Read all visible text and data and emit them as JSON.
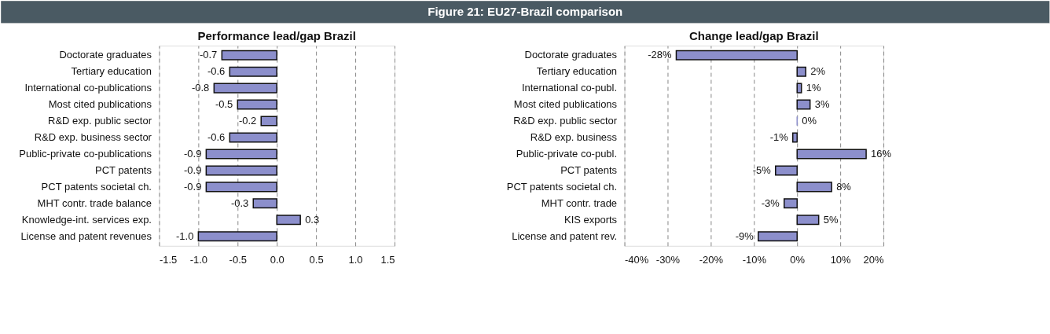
{
  "chart_data": [
    {
      "type": "bar",
      "orientation": "horizontal",
      "title": "Performance lead/gap Brazil",
      "annotations": [
        "Figure 21: EU27-Brazil comparison"
      ],
      "categories": [
        "Doctorate graduates",
        "Tertiary education",
        "International co-publications",
        "Most cited publications",
        "R&D exp. public sector",
        "R&D exp. business sector",
        "Public-private co-publications",
        "PCT patents",
        "PCT patents societal ch.",
        "MHT contr. trade balance",
        "Knowledge-int. services exp.",
        "License and patent revenues"
      ],
      "values": [
        -0.7,
        -0.6,
        -0.8,
        -0.5,
        -0.2,
        -0.6,
        -0.9,
        -0.9,
        -0.9,
        -0.3,
        0.3,
        -1.0
      ],
      "value_labels": [
        "-0.7",
        "-0.6",
        "-0.8",
        "-0.5",
        "-0.2",
        "-0.6",
        "-0.9",
        "-0.9",
        "-0.9",
        "-0.3",
        "0.3",
        "-1.0"
      ],
      "color": "#8c8fcc",
      "xlim": [
        -1.5,
        1.5
      ],
      "xticks": [
        {
          "value": -1.5,
          "label": "-1.5"
        },
        {
          "value": -1.0,
          "label": "-1.0"
        },
        {
          "value": -0.5,
          "label": "-0.5"
        },
        {
          "value": 0,
          "label": "0.0"
        },
        {
          "value": 0.5,
          "label": "0.5"
        },
        {
          "value": 1.0,
          "label": "1.0"
        },
        {
          "value": 1.5,
          "label": "1.5"
        }
      ],
      "grid": "x"
    },
    {
      "type": "bar",
      "orientation": "horizontal",
      "title": "Change lead/gap Brazil",
      "categories": [
        "Doctorate graduates",
        "Tertiary education",
        "International co-publ.",
        "Most cited publications",
        "R&D exp. public sector",
        "R&D exp. business",
        "Public-private co-publ.",
        "PCT patents",
        "PCT patents societal ch.",
        "MHT contr. trade",
        "KIS exports",
        "License and patent rev."
      ],
      "values": [
        -28,
        2,
        1,
        3,
        0,
        -1,
        16,
        -5,
        8,
        -3,
        5,
        -9
      ],
      "value_labels": [
        "-28%",
        "2%",
        "1%",
        "3%",
        "0%",
        "-1%",
        "16%",
        "-5%",
        "8%",
        "-3%",
        "5%",
        "-9%"
      ],
      "color": "#8c8fcc",
      "xlim": [
        -40,
        20
      ],
      "xticks": [
        {
          "value": -40,
          "label": "-40%"
        },
        {
          "value": -30,
          "label": "-30%"
        },
        {
          "value": -20,
          "label": "-20%"
        },
        {
          "value": -10,
          "label": "-10%"
        },
        {
          "value": 0,
          "label": "0%"
        },
        {
          "value": 10,
          "label": "10%"
        },
        {
          "value": 20,
          "label": "20%"
        }
      ],
      "grid": "x"
    }
  ]
}
